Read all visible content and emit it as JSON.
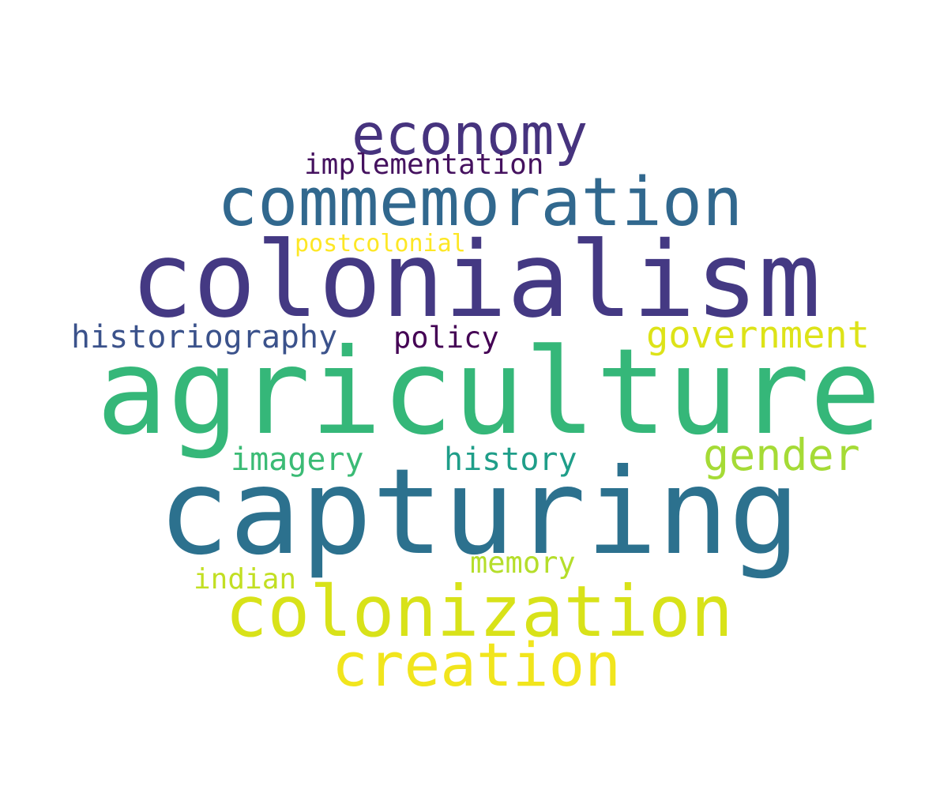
{
  "words": [
    {
      "text": "economy",
      "color": "#46337e"
    },
    {
      "text": "implementation",
      "color": "#45125f"
    },
    {
      "text": "commemoration",
      "color": "#31688e"
    },
    {
      "text": "postcolonial",
      "color": "#fde725"
    },
    {
      "text": "colonialism",
      "color": "#443983"
    },
    {
      "text": "historiography",
      "color": "#3b528b"
    },
    {
      "text": "policy",
      "color": "#440154"
    },
    {
      "text": "government",
      "color": "#dde318"
    },
    {
      "text": "agriculture",
      "color": "#35b779"
    },
    {
      "text": "gender",
      "color": "#a5db36"
    },
    {
      "text": "imagery",
      "color": "#3bbb75"
    },
    {
      "text": "history",
      "color": "#1f9e89"
    },
    {
      "text": "capturing",
      "color": "#2c718e"
    },
    {
      "text": "memory",
      "color": "#b5de2b"
    },
    {
      "text": "indian",
      "color": "#c2df23"
    },
    {
      "text": "colonization",
      "color": "#d8e219"
    },
    {
      "text": "creation",
      "color": "#f1e51d"
    }
  ]
}
